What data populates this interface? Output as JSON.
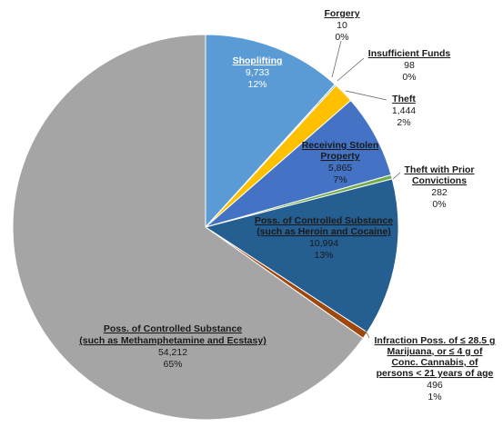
{
  "chart_data": {
    "type": "pie",
    "slices": [
      {
        "name": "Shoplifting",
        "value": 9733,
        "value_label": "9,733",
        "pct_label": "12%",
        "color": "#5b9bd5"
      },
      {
        "name": "Forgery",
        "value": 10,
        "value_label": "10",
        "pct_label": "0%",
        "color": "#a5a5a5"
      },
      {
        "name": "Insufficient Funds",
        "value": 98,
        "value_label": "98",
        "pct_label": "0%",
        "color": "#4a7ebb"
      },
      {
        "name": "Theft",
        "value": 1444,
        "value_label": "1,444",
        "pct_label": "2%",
        "color": "#ffc000"
      },
      {
        "name": "Receiving Stolen Property",
        "value": 5865,
        "value_label": "5,865",
        "pct_label": "7%",
        "color": "#4472c4"
      },
      {
        "name": "Theft with Prior Convictions",
        "value": 282,
        "value_label": "282",
        "pct_label": "0%",
        "color": "#70ad47"
      },
      {
        "name": "Poss. of Controlled Substance (such as Heroin and Cocaine)",
        "value": 10994,
        "value_label": "10,994",
        "pct_label": "13%",
        "color": "#255e91"
      },
      {
        "name": "Infraction Poss. of ≤ 28.5 g Marijuana, or ≤ 4 g of Conc. Cannabis, of persons < 21 years of age",
        "value": 496,
        "value_label": "496",
        "pct_label": "1%",
        "color": "#9e480e"
      },
      {
        "name": "Poss. of Controlled Substance (such as Methamphetamine and Ecstasy)",
        "value": 54212,
        "value_label": "54,212",
        "pct_label": "65%",
        "color": "#a5a5a5"
      }
    ],
    "labels": {
      "shoplifting": {
        "name": "Shoplifting",
        "value": "9,733",
        "pct": "12%"
      },
      "forgery": {
        "name": "Forgery",
        "value": "10",
        "pct": "0%"
      },
      "insufficient": {
        "name": "Insufficient Funds",
        "value": "98",
        "pct": "0%"
      },
      "theft": {
        "name": "Theft",
        "value": "1,444",
        "pct": "2%"
      },
      "receiving": {
        "name1": "Receiving Stolen",
        "name2": "Property",
        "value": "5,865",
        "pct": "7%"
      },
      "theftprior": {
        "name1": "Theft with Prior",
        "name2": "Convictions",
        "value": "282",
        "pct": "0%"
      },
      "heroin": {
        "name1": "Poss. of Controlled Substance",
        "name2": "(such as Heroin and Cocaine)",
        "value": "10,994",
        "pct": "13%"
      },
      "marijuana": {
        "name1": "Infraction Poss. of ≤ 28.5 g",
        "name2": "Marijuana, or ≤ 4 g of",
        "name3": "Conc. Cannabis, of",
        "name4": "persons < 21 years of age",
        "value": "496",
        "pct": "1%"
      },
      "meth": {
        "name1": "Poss. of Controlled Substance",
        "name2": "(such as Methamphetamine and Ecstasy)",
        "value": "54,212",
        "pct": "65%"
      }
    }
  }
}
